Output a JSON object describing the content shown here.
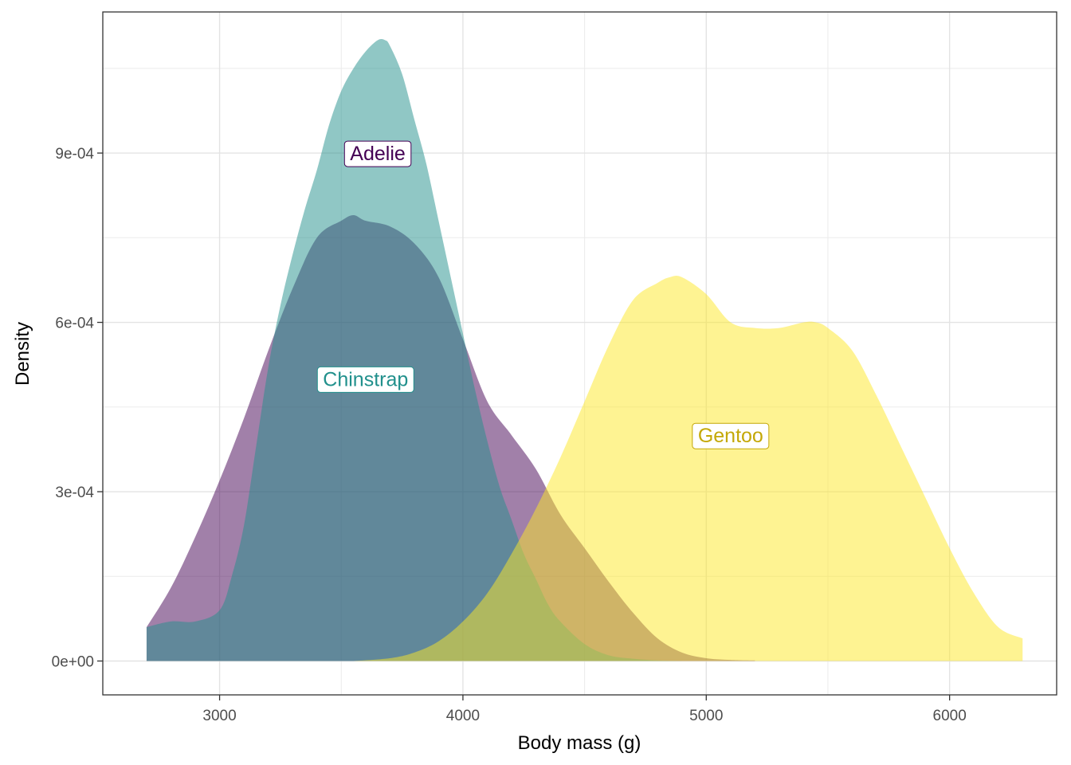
{
  "chart_data": {
    "type": "area",
    "subtype": "density",
    "xlabel": "Body mass (g)",
    "ylabel": "Density",
    "xlim": [
      2520,
      6440
    ],
    "ylim": [
      -6e-05,
      0.00115
    ],
    "x_ticks": [
      3000,
      4000,
      5000,
      6000
    ],
    "x_tick_labels": [
      "3000",
      "4000",
      "5000",
      "6000"
    ],
    "y_ticks": [
      0,
      0.0003,
      0.0006,
      0.0009
    ],
    "y_tick_labels": [
      "0e+00",
      "3e-04",
      "6e-04",
      "9e-04"
    ],
    "grid": true,
    "legend": "none (direct labels)",
    "series": [
      {
        "name": "Adelie",
        "color": "#440154",
        "opacity": 0.5,
        "x": [
          2700,
          2800,
          2900,
          3000,
          3100,
          3200,
          3300,
          3400,
          3500,
          3550,
          3600,
          3700,
          3800,
          3900,
          4000,
          4100,
          4200,
          4300,
          4400,
          4500,
          4600,
          4700,
          4800,
          4900,
          5000,
          5100,
          5200
        ],
        "y": [
          6e-05,
          0.00013,
          0.00022,
          0.00032,
          0.00043,
          0.00055,
          0.00066,
          0.00075,
          0.00078,
          0.00079,
          0.00078,
          0.00077,
          0.00074,
          0.00068,
          0.00057,
          0.00046,
          0.0004,
          0.00034,
          0.00026,
          0.0002,
          0.00014,
          8.5e-05,
          4e-05,
          1.5e-05,
          5e-06,
          2e-06,
          1e-06
        ]
      },
      {
        "name": "Chinstrap",
        "color": "#21908C",
        "opacity": 0.5,
        "x": [
          2700,
          2800,
          2900,
          3000,
          3050,
          3100,
          3150,
          3200,
          3250,
          3300,
          3350,
          3400,
          3450,
          3500,
          3550,
          3600,
          3650,
          3680,
          3700,
          3750,
          3800,
          3850,
          3900,
          3950,
          4000,
          4050,
          4100,
          4150,
          4200,
          4250,
          4300,
          4350,
          4400,
          4500,
          4600,
          4700,
          4800,
          4900
        ],
        "y": [
          6e-05,
          7e-05,
          7e-05,
          9e-05,
          0.00015,
          0.00024,
          0.00038,
          0.00052,
          0.00063,
          0.00072,
          0.0008,
          0.00087,
          0.00095,
          0.00101,
          0.00105,
          0.00108,
          0.0011,
          0.0011,
          0.00109,
          0.00104,
          0.00096,
          0.00088,
          0.00078,
          0.00068,
          0.00058,
          0.00048,
          0.00039,
          0.00031,
          0.00025,
          0.00019,
          0.000145,
          0.0001,
          7e-05,
          3e-05,
          1e-05,
          4e-06,
          1e-06,
          0
        ]
      },
      {
        "name": "Gentoo",
        "color": "#FDE725",
        "opacity": 0.5,
        "x": [
          3550,
          3700,
          3800,
          3900,
          4000,
          4100,
          4200,
          4300,
          4400,
          4500,
          4600,
          4700,
          4800,
          4850,
          4900,
          5000,
          5100,
          5200,
          5300,
          5400,
          5450,
          5500,
          5600,
          5700,
          5800,
          5900,
          6000,
          6100,
          6200,
          6300
        ],
        "y": [
          0,
          5e-06,
          1.5e-05,
          3.5e-05,
          7e-05,
          0.00012,
          0.00019,
          0.00027,
          0.00036,
          0.00046,
          0.00056,
          0.00064,
          0.00067,
          0.00068,
          0.00068,
          0.00065,
          0.0006,
          0.00059,
          0.00059,
          0.0006,
          0.0006,
          0.00059,
          0.00055,
          0.00047,
          0.00038,
          0.00029,
          0.0002,
          0.00012,
          6e-05,
          4e-05
        ]
      }
    ],
    "annotations": [
      {
        "text": "Adelie",
        "x": 3650,
        "y": 0.0009,
        "color": "#440154"
      },
      {
        "text": "Chinstrap",
        "x": 3600,
        "y": 0.0005,
        "color": "#21908C"
      },
      {
        "text": "Gentoo",
        "x": 5100,
        "y": 0.0004,
        "color": "#C4A807"
      }
    ]
  }
}
